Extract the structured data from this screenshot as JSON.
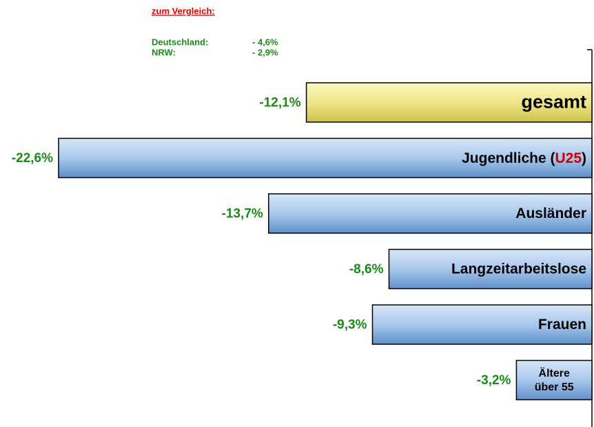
{
  "chart_data": {
    "type": "bar",
    "orientation": "horizontal",
    "categories": [
      "gesamt",
      "Jugendliche (U25)",
      "Ausländer",
      "Langzeitarbeitslose",
      "Frauen",
      [
        "Ältere",
        "über 55"
      ]
    ],
    "values": [
      -12.1,
      -22.6,
      -13.7,
      -8.6,
      -9.3,
      -3.2
    ],
    "value_labels": [
      "-12,1%",
      "-22,6%",
      "-13,7%",
      "-8,6%",
      "-9,3%",
      "-3,2%"
    ],
    "colors": [
      "yellow",
      "blue",
      "blue",
      "blue",
      "blue",
      "blue"
    ],
    "highlight": {
      "category": 1,
      "text": "U25",
      "color": "#cc0000"
    },
    "xlim": [
      -22.6,
      0
    ],
    "comparison": {
      "heading": "zum Vergleich:",
      "rows": [
        {
          "label": "Deutschland:",
          "value": "- 4,6%"
        },
        {
          "label": "NRW:",
          "value": "- 2,9%"
        }
      ]
    }
  }
}
